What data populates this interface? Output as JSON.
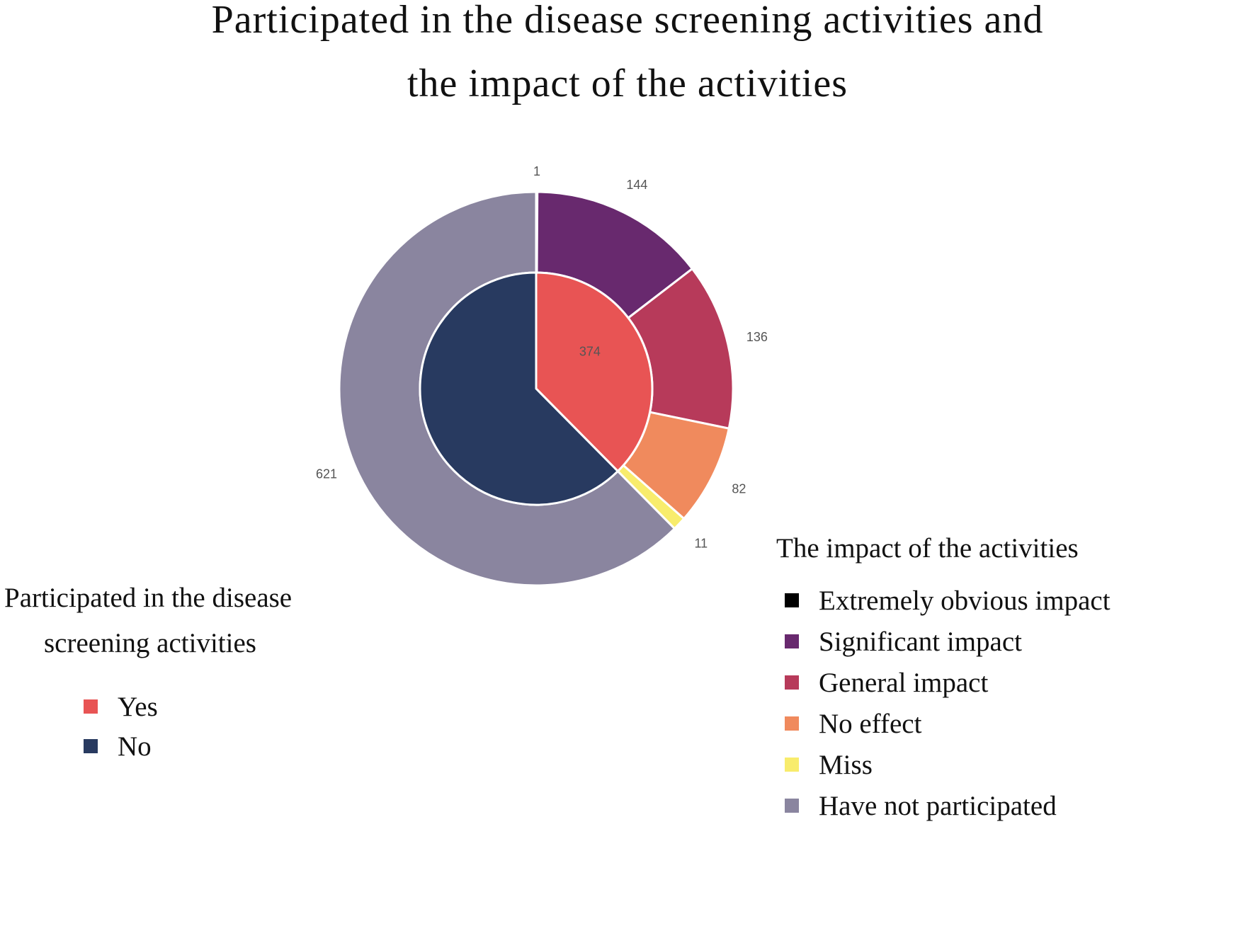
{
  "chart_data": {
    "type": "pie",
    "subtype": "nested-donut",
    "title_lines": [
      "Participated in the disease screening activities and",
      "the impact of the activities"
    ],
    "inner": {
      "legend_title_lines": [
        "Participated in the disease",
        "screening activities"
      ],
      "slices": [
        {
          "name": "Yes",
          "value": 374,
          "color": "#e85454",
          "label": "374"
        },
        {
          "name": "No",
          "value": 621,
          "color": "#283a60",
          "label": ""
        }
      ]
    },
    "outer": {
      "legend_title": "The impact of the activities",
      "slices": [
        {
          "name": "Extremely obvious impact",
          "value": 1,
          "color": "#000000",
          "label": "1"
        },
        {
          "name": "Significant impact",
          "value": 144,
          "color": "#68296e",
          "label": "144"
        },
        {
          "name": "General impact",
          "value": 136,
          "color": "#b73a5a",
          "label": "136"
        },
        {
          "name": "No effect",
          "value": 82,
          "color": "#f08a5d",
          "label": "82"
        },
        {
          "name": "Miss",
          "value": 11,
          "color": "#f8ec6c",
          "label": "11"
        },
        {
          "name": "Have not participated",
          "value": 621,
          "color": "#8a859f",
          "label": "621"
        }
      ]
    }
  }
}
